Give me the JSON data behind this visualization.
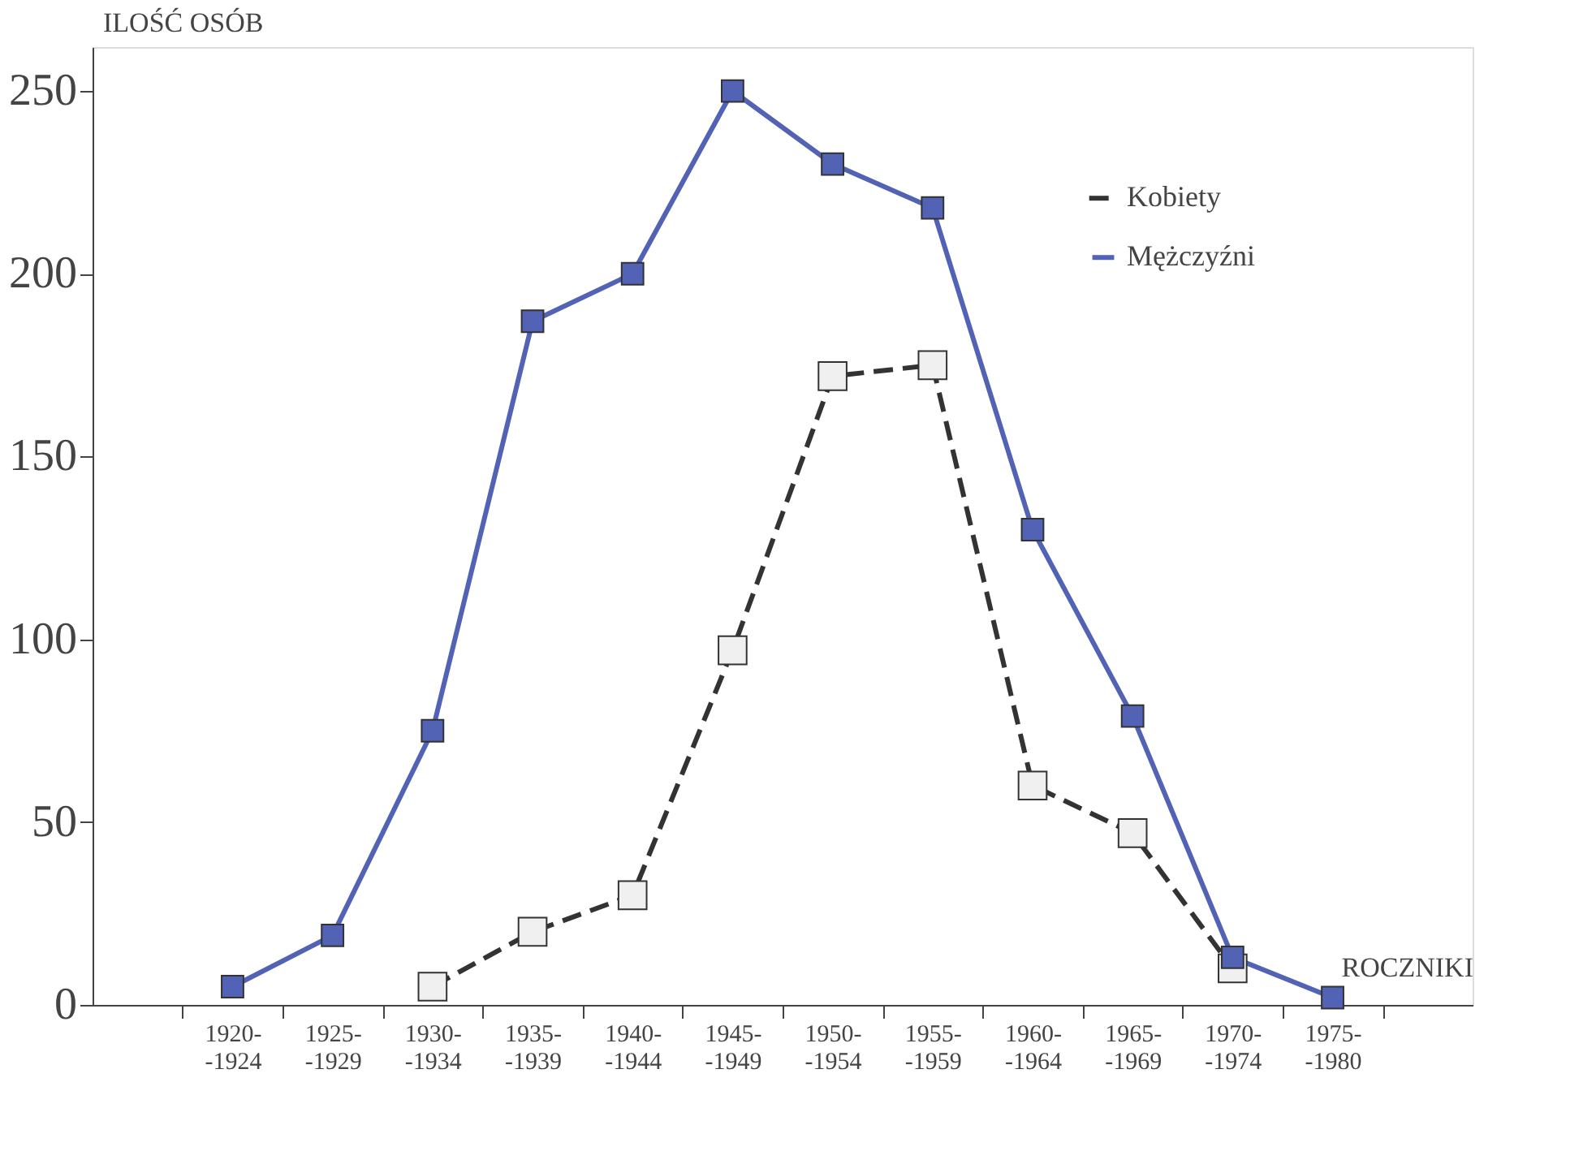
{
  "chart_data": {
    "type": "line",
    "categories": [
      "1920-\n-1924",
      "1925-\n-1929",
      "1930-\n-1934",
      "1935-\n-1939",
      "1940-\n-1944",
      "1945-\n-1949",
      "1950-\n-1954",
      "1955-\n-1959",
      "1960-\n-1964",
      "1965-\n-1969",
      "1970-\n-1974",
      "1975-\n-1980"
    ],
    "series": [
      {
        "name": "Kobiety",
        "color": "#333333",
        "line_style": "dashed",
        "values": [
          null,
          null,
          5,
          20,
          30,
          97,
          172,
          175,
          60,
          47,
          10,
          null
        ]
      },
      {
        "name": "Mężczyźni",
        "color": "#5262b4",
        "line_style": "solid",
        "values": [
          5,
          19,
          75,
          187,
          200,
          250,
          230,
          218,
          130,
          79,
          13,
          2
        ]
      }
    ],
    "xlabel": "ROCZNIKI",
    "ylabel": "ILOŚĆ OSÓB",
    "ylim": [
      0,
      262
    ],
    "yticks": [
      0,
      50,
      100,
      150,
      200,
      250
    ],
    "marker": "square",
    "grid": false,
    "legend": "top right"
  }
}
